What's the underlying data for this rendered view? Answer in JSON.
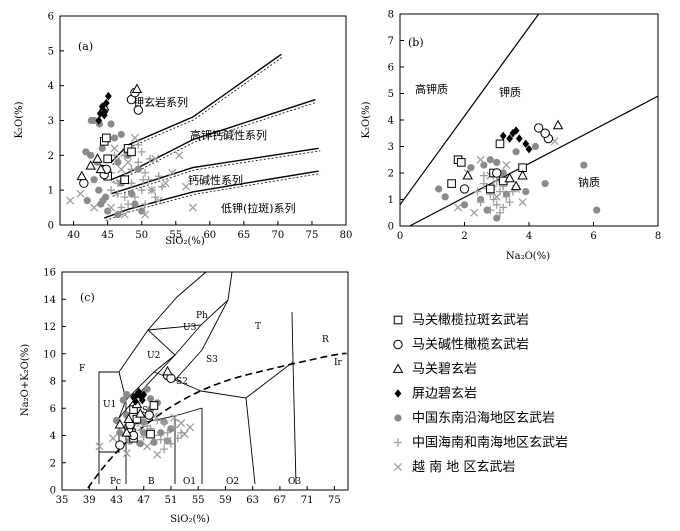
{
  "colors": {
    "axis": "#000000",
    "gray_point": "#8a8a8a",
    "cross": "#9e9e9e"
  },
  "chart_data": [
    {
      "id": "a",
      "type": "scatter",
      "panel_label": "(a)",
      "xlabel": "SiO₂(%)",
      "ylabel": "K₂O(%)",
      "xlim": [
        38,
        80
      ],
      "ylim": [
        0,
        6
      ],
      "xticks": [
        "40",
        "45",
        "50",
        "55",
        "60",
        "65",
        "70",
        "75",
        "80"
      ],
      "yticks": [
        "0",
        "1",
        "2",
        "3",
        "4",
        "5",
        "6"
      ],
      "series_labels": [
        "钾玄岩系列",
        "高钾钙碱性系列",
        "钙碱性系列",
        "低钾(拉斑)系列"
      ],
      "boundaries": [
        [
          [
            45.5,
            1.8
          ],
          [
            48,
            2.3
          ],
          [
            57.5,
            3.1
          ],
          [
            70.5,
            4.9
          ]
        ],
        [
          [
            45.5,
            1.3
          ],
          [
            48,
            1.5
          ],
          [
            57.5,
            2.45
          ],
          [
            75.5,
            3.6
          ]
        ],
        [
          [
            45.5,
            0.9
          ],
          [
            48,
            1.05
          ],
          [
            57.5,
            1.65
          ],
          [
            76,
            2.2
          ]
        ],
        [
          [
            44.5,
            0.2
          ],
          [
            48,
            0.45
          ],
          [
            57.5,
            0.95
          ],
          [
            76,
            1.55
          ]
        ]
      ],
      "points": {
        "maguan_olivine_tholeiite": [
          [
            44.5,
            2.4
          ],
          [
            44.8,
            2.5
          ],
          [
            45,
            1.9
          ],
          [
            44.5,
            1.6
          ],
          [
            48,
            2.2
          ],
          [
            47.5,
            1.3
          ],
          [
            48.5,
            2.1
          ],
          [
            45,
            1.4
          ]
        ],
        "maguan_alkali_olivine_basalt": [
          [
            41.5,
            1.2
          ],
          [
            44.5,
            1.45
          ],
          [
            48.5,
            3.6
          ],
          [
            49.5,
            3.3
          ],
          [
            44.8,
            1.6
          ],
          [
            49,
            3.8
          ]
        ],
        "maguan_basanite": [
          [
            41.2,
            1.4
          ],
          [
            42.5,
            1.7
          ],
          [
            44.5,
            3.4
          ],
          [
            49.3,
            3.9
          ],
          [
            43.5,
            1.9
          ],
          [
            44,
            1.6
          ]
        ],
        "pingbian_basanite": [
          [
            43.7,
            3.0
          ],
          [
            44.2,
            3.4
          ],
          [
            44.8,
            3.5
          ],
          [
            45.1,
            3.7
          ],
          [
            44.6,
            3.25
          ],
          [
            43.9,
            3.2
          ],
          [
            44.5,
            3.15
          ]
        ],
        "se_china_basalt": [
          [
            42.6,
            3.0
          ],
          [
            43,
            3.0
          ],
          [
            42.5,
            2.0
          ],
          [
            43.8,
            2.9
          ],
          [
            44.2,
            2.2
          ],
          [
            43.5,
            1.8
          ],
          [
            43,
            1.3
          ],
          [
            43.7,
            1.0
          ],
          [
            44.3,
            0.7
          ],
          [
            44.7,
            0.8
          ],
          [
            45.5,
            2.9
          ],
          [
            46,
            2.5
          ],
          [
            47,
            2.6
          ],
          [
            45,
            0.4
          ],
          [
            46.5,
            1.8
          ],
          [
            48,
            2.0
          ],
          [
            49.5,
            1.6
          ],
          [
            47,
            1.2
          ],
          [
            48.5,
            0.9
          ],
          [
            49,
            0.6
          ],
          [
            50,
            0.4
          ],
          [
            44,
            0.6
          ],
          [
            42,
            0.7
          ],
          [
            41.8,
            2.1
          ],
          [
            46.5,
            0.3
          ]
        ],
        "hainan_scs_basalt": [
          [
            45.5,
            1.0
          ],
          [
            46.5,
            1.2
          ],
          [
            47.5,
            1.4
          ],
          [
            48.5,
            1.6
          ],
          [
            49.5,
            1.8
          ],
          [
            50,
            2.1
          ],
          [
            50.5,
            1.5
          ],
          [
            51,
            1.3
          ],
          [
            51.5,
            1.0
          ],
          [
            52,
            0.8
          ],
          [
            50,
            1.0
          ],
          [
            49,
            0.8
          ],
          [
            48,
            0.6
          ],
          [
            47,
            0.5
          ],
          [
            46.5,
            0.9
          ],
          [
            45.5,
            1.5
          ],
          [
            46,
            2.0
          ],
          [
            47.5,
            2.0
          ],
          [
            49.5,
            2.3
          ],
          [
            50.5,
            0.6
          ],
          [
            51.2,
            1.9
          ],
          [
            52.5,
            1.4
          ],
          [
            53,
            1.1
          ],
          [
            48.5,
            1.2
          ],
          [
            47.5,
            0.8
          ],
          [
            50.2,
            1.3
          ]
        ],
        "vietnam_basalt": [
          [
            39.5,
            0.7
          ],
          [
            41,
            0.9
          ],
          [
            43,
            0.5
          ],
          [
            45.5,
            0.5
          ],
          [
            47,
            1.6
          ],
          [
            49,
            2.5
          ],
          [
            51.5,
            1.0
          ],
          [
            52.5,
            0.7
          ],
          [
            53.5,
            1.2
          ],
          [
            55.5,
            2.0
          ],
          [
            56.5,
            1.1
          ],
          [
            57.5,
            0.5
          ],
          [
            50.5,
            0.3
          ],
          [
            48,
            1.8
          ],
          [
            46,
            2.2
          ],
          [
            54.5,
            1.5
          ],
          [
            52,
            1.9
          ],
          [
            47.5,
            0.3
          ]
        ]
      }
    },
    {
      "id": "b",
      "type": "scatter",
      "panel_label": "(b)",
      "xlabel": "Na₂O(%)",
      "ylabel": "K₂O(%)",
      "xlim": [
        0,
        8
      ],
      "ylim": [
        0,
        8
      ],
      "xticks": [
        "0",
        "2",
        "4",
        "6",
        "8"
      ],
      "yticks": [
        "0",
        "1",
        "2",
        "3",
        "4",
        "5",
        "6",
        "7",
        "8"
      ],
      "field_labels": [
        "高钾质",
        "钾质",
        "钠质"
      ],
      "boundaries": [
        [
          [
            0,
            0.8
          ],
          [
            4.3,
            8
          ]
        ],
        [
          [
            0.3,
            0
          ],
          [
            8,
            4.9
          ]
        ]
      ],
      "points": {
        "maguan_olivine_tholeiite": [
          [
            1.8,
            2.5
          ],
          [
            1.6,
            1.6
          ],
          [
            1.9,
            2.4
          ],
          [
            3.1,
            3.1
          ],
          [
            2.9,
            2.0
          ],
          [
            2.8,
            1.4
          ],
          [
            3.8,
            2.2
          ],
          [
            3.2,
            1.7
          ]
        ],
        "maguan_alkali_olivine_basalt": [
          [
            2.0,
            1.4
          ],
          [
            3.0,
            2.0
          ],
          [
            4.3,
            3.7
          ],
          [
            4.6,
            3.3
          ],
          [
            4.5,
            3.5
          ]
        ],
        "maguan_basanite": [
          [
            2.1,
            1.9
          ],
          [
            3.6,
            1.5
          ],
          [
            3.8,
            1.9
          ],
          [
            4.9,
            3.8
          ],
          [
            3.4,
            1.8
          ]
        ],
        "pingbian_basanite": [
          [
            3.2,
            3.4
          ],
          [
            3.5,
            3.5
          ],
          [
            3.6,
            3.6
          ],
          [
            3.9,
            3.1
          ],
          [
            3.7,
            3.3
          ],
          [
            4.0,
            2.9
          ],
          [
            3.4,
            3.3
          ]
        ],
        "se_china_basalt": [
          [
            1.2,
            1.4
          ],
          [
            1.4,
            1.1
          ],
          [
            2.2,
            2.2
          ],
          [
            2.6,
            2.3
          ],
          [
            2.8,
            2.5
          ],
          [
            3.0,
            2.4
          ],
          [
            3.2,
            2.0
          ],
          [
            3.6,
            2.8
          ],
          [
            4.2,
            3.0
          ],
          [
            5.7,
            2.3
          ],
          [
            6.1,
            0.6
          ],
          [
            3.9,
            1.3
          ],
          [
            2.5,
            1.0
          ],
          [
            3.3,
            1.2
          ],
          [
            2.0,
            0.8
          ],
          [
            4.5,
            1.6
          ],
          [
            3.0,
            0.3
          ],
          [
            2.7,
            0.6
          ]
        ],
        "hainan_scs_basalt": [
          [
            2.6,
            1.6
          ],
          [
            2.7,
            1.4
          ],
          [
            2.8,
            1.2
          ],
          [
            2.9,
            1.0
          ],
          [
            3.0,
            0.8
          ],
          [
            3.1,
            1.3
          ],
          [
            3.2,
            1.5
          ],
          [
            3.3,
            1.1
          ],
          [
            2.5,
            0.9
          ],
          [
            2.4,
            1.3
          ],
          [
            3.0,
            1.7
          ],
          [
            2.8,
            0.6
          ],
          [
            3.4,
            0.9
          ],
          [
            3.1,
            0.5
          ],
          [
            2.6,
            1.9
          ],
          [
            3.5,
            1.3
          ],
          [
            2.9,
            1.5
          ],
          [
            3.2,
            0.7
          ]
        ],
        "vietnam_basalt": [
          [
            1.8,
            0.7
          ],
          [
            2.3,
            0.5
          ],
          [
            2.8,
            1.9
          ],
          [
            3.3,
            2.3
          ],
          [
            3.6,
            1.4
          ],
          [
            2.1,
            2.0
          ],
          [
            3.0,
            1.1
          ],
          [
            3.8,
            0.9
          ],
          [
            2.5,
            2.5
          ],
          [
            4.8,
            3.2
          ]
        ]
      }
    },
    {
      "id": "c",
      "type": "scatter",
      "panel_label": "(c)",
      "xlabel": "SiO₂(%)",
      "ylabel": "Na₂O+K₂O(%)",
      "xlim": [
        35,
        77
      ],
      "ylim": [
        0,
        16
      ],
      "xticks": [
        "35",
        "39",
        "43",
        "47",
        "51",
        "55",
        "59",
        "63",
        "67",
        "71",
        "75"
      ],
      "yticks": [
        "0",
        "2",
        "4",
        "6",
        "8",
        "10",
        "12",
        "14",
        "16"
      ],
      "field_labels": [
        "Ph",
        "U3",
        "T",
        "R",
        "U2",
        "S3",
        "F",
        "S2",
        "Ir",
        "U1",
        "S1",
        "Pc",
        "B",
        "O1",
        "O2",
        "O3"
      ],
      "points": {
        "maguan_olivine_tholeiite": [
          [
            45,
            4.4
          ],
          [
            45.2,
            4.2
          ],
          [
            45.5,
            3.8
          ],
          [
            46,
            5.2
          ],
          [
            48.5,
            6.2
          ],
          [
            48,
            4.1
          ],
          [
            45.5,
            5.9
          ],
          [
            44.8,
            4.5
          ]
        ],
        "maguan_alkali_olivine_basalt": [
          [
            43.5,
            3.3
          ],
          [
            45.5,
            4.0
          ],
          [
            47.8,
            5.5
          ],
          [
            50.5,
            8.4
          ],
          [
            51,
            8.2
          ],
          [
            45,
            4.8
          ]
        ],
        "maguan_basanite": [
          [
            43.5,
            4.8
          ],
          [
            44.5,
            4.2
          ],
          [
            46.5,
            5.6
          ],
          [
            50.5,
            8.7
          ],
          [
            44.8,
            5.2
          ],
          [
            46,
            6.3
          ]
        ],
        "pingbian_basanite": [
          [
            45.5,
            6.8
          ],
          [
            46,
            7.0
          ],
          [
            46.3,
            7.2
          ],
          [
            46.8,
            6.6
          ],
          [
            47,
            7.0
          ],
          [
            45.8,
            6.5
          ],
          [
            46.5,
            6.9
          ]
        ],
        "se_china_basalt": [
          [
            43,
            5.1
          ],
          [
            44,
            6.6
          ],
          [
            44.5,
            5.5
          ],
          [
            45,
            3.6
          ],
          [
            45.5,
            3.9
          ],
          [
            46,
            6.3
          ],
          [
            47,
            4.2
          ],
          [
            48,
            5.9
          ],
          [
            48.5,
            3.5
          ],
          [
            49,
            6.4
          ],
          [
            50,
            5.0
          ],
          [
            50.5,
            3.6
          ],
          [
            51,
            4.5
          ],
          [
            44.5,
            7.0
          ],
          [
            47.5,
            7.4
          ],
          [
            43.5,
            4.2
          ],
          [
            46.5,
            3.4
          ],
          [
            49.5,
            4.2
          ],
          [
            48,
            6.7
          ],
          [
            47,
            5.0
          ],
          [
            45.3,
            4.8
          ]
        ],
        "hainan_scs_basalt": [
          [
            45.5,
            4.1
          ],
          [
            46.5,
            4.4
          ],
          [
            47.5,
            4.7
          ],
          [
            48.5,
            4.0
          ],
          [
            49.5,
            3.7
          ],
          [
            50.5,
            4.2
          ],
          [
            51.5,
            4.6
          ],
          [
            52,
            3.8
          ],
          [
            50,
            4.9
          ],
          [
            48,
            4.5
          ],
          [
            46,
            3.6
          ],
          [
            49,
            5.1
          ],
          [
            51,
            3.4
          ],
          [
            47,
            3.9
          ],
          [
            52.5,
            4.2
          ],
          [
            44.8,
            3.6
          ],
          [
            50,
            3.0
          ]
        ],
        "vietnam_basalt": [
          [
            40.5,
            3.2
          ],
          [
            42.5,
            3.8
          ],
          [
            44.5,
            2.7
          ],
          [
            46.5,
            4.9
          ],
          [
            48.5,
            5.4
          ],
          [
            50.5,
            3.6
          ],
          [
            52.5,
            4.9
          ],
          [
            53,
            4.1
          ],
          [
            51.5,
            5.3
          ],
          [
            49,
            2.6
          ],
          [
            47.5,
            3.2
          ],
          [
            53.8,
            4.6
          ]
        ]
      }
    }
  ],
  "legend": [
    {
      "key": "maguan_olivine_tholeiite",
      "label": "马关橄榄拉斑玄武岩"
    },
    {
      "key": "maguan_alkali_olivine_basalt",
      "label": "马关碱性橄榄玄武岩"
    },
    {
      "key": "maguan_basanite",
      "label": "马关碧玄岩"
    },
    {
      "key": "pingbian_basanite",
      "label": "屏边碧玄岩"
    },
    {
      "key": "se_china_basalt",
      "label": "中国东南沿海地区玄武岩"
    },
    {
      "key": "hainan_scs_basalt",
      "label": "中国海南和南海地区玄武岩"
    },
    {
      "key": "vietnam_basalt",
      "label": "越 南 地 区玄武岩"
    }
  ]
}
